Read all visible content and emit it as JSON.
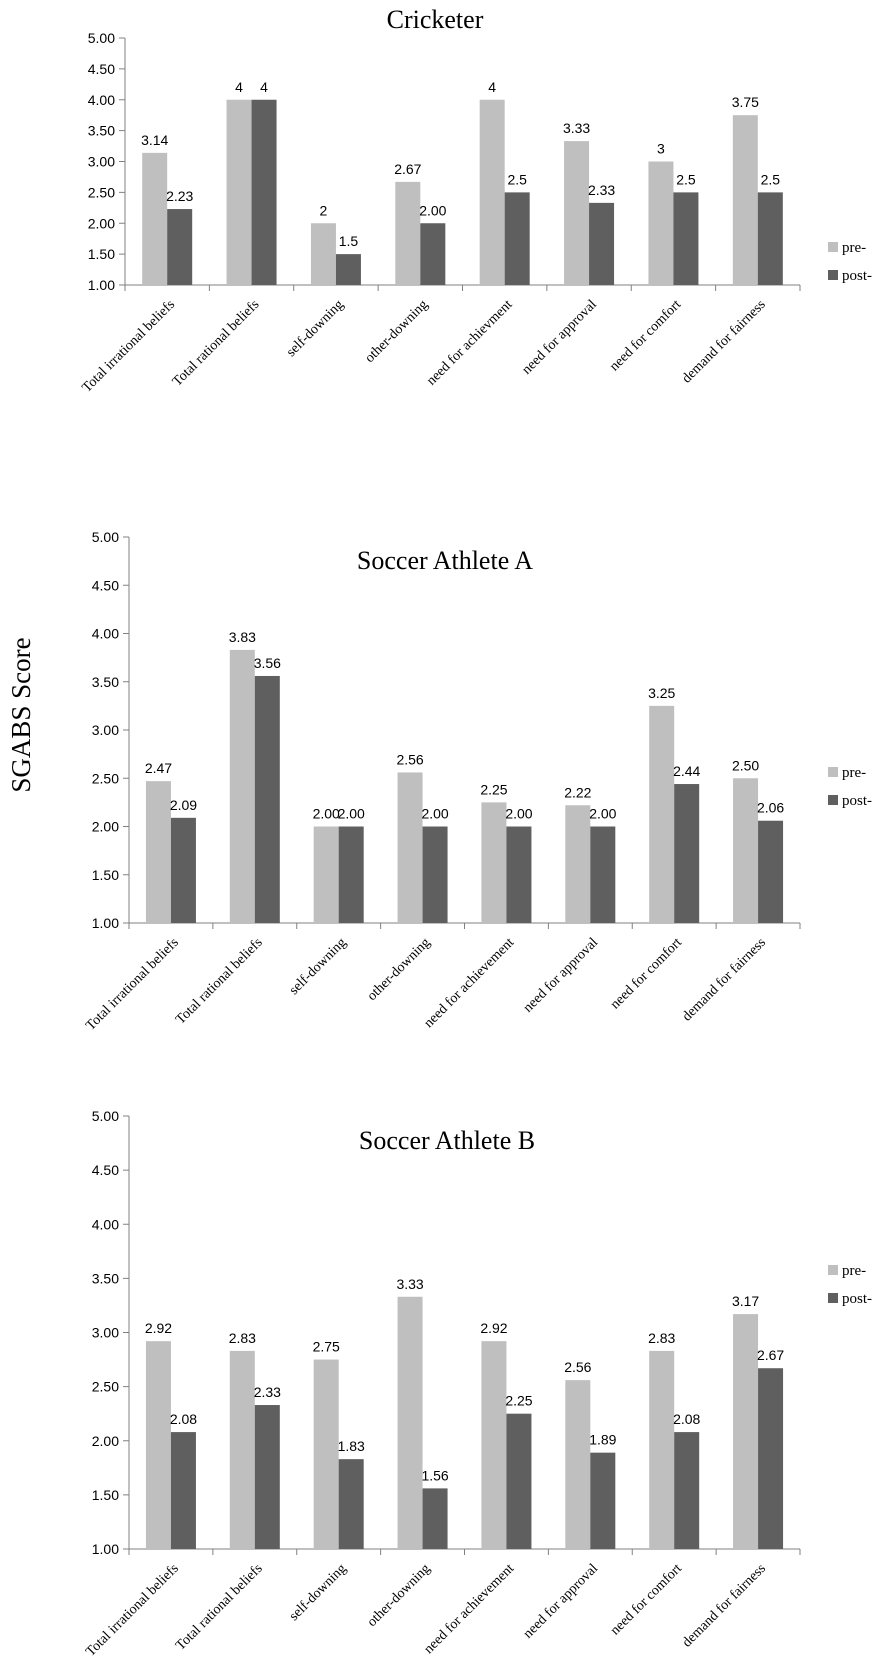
{
  "figure": {
    "ylabel": "SGABS Score"
  },
  "colors": {
    "pre": "#BFBFBF",
    "post": "#5F5F5F",
    "axis": "#808080",
    "text": "#000000"
  },
  "chart_data": [
    {
      "type": "bar",
      "title": "Cricketer",
      "categories": [
        "Total irrational beliefs",
        "Total rational beliefs",
        "self-downing",
        "other-downing",
        "need for achievment",
        "need for approval",
        "need for comfort",
        "demand for fairness"
      ],
      "series": [
        {
          "name": "pre-",
          "values": [
            3.14,
            4,
            2,
            2.67,
            4,
            3.33,
            3,
            3.75
          ],
          "labels": [
            "3.14",
            "4",
            "2",
            "2.67",
            "4",
            "3.33",
            "3",
            "3.75"
          ]
        },
        {
          "name": "post-",
          "values": [
            2.23,
            4,
            1.5,
            2.0,
            2.5,
            2.33,
            2.5,
            2.5
          ],
          "labels": [
            "2.23",
            "4",
            "1.5",
            "2.00",
            "2.5",
            "2.33",
            "2.5",
            "2.5"
          ]
        }
      ],
      "yticks": [
        "1.00",
        "1.50",
        "2.00",
        "2.50",
        "3.00",
        "3.50",
        "4.00",
        "4.50",
        "5.00"
      ],
      "ylim": [
        1,
        5
      ],
      "legend": "right",
      "grid": false
    },
    {
      "type": "bar",
      "title": "Soccer Athlete A",
      "categories": [
        "Total irrational beliefs",
        "Total rational beliefs",
        "self-downing",
        "other-downing",
        "need for achievement",
        "need for approval",
        "need for comfort",
        "demand for fairness"
      ],
      "series": [
        {
          "name": "pre-",
          "values": [
            2.47,
            3.83,
            2.0,
            2.56,
            2.25,
            2.22,
            3.25,
            2.5
          ],
          "labels": [
            "2.47",
            "3.83",
            "2.00",
            "2.56",
            "2.25",
            "2.22",
            "3.25",
            "2.50"
          ]
        },
        {
          "name": "post-",
          "values": [
            2.09,
            3.56,
            2.0,
            2.0,
            2.0,
            2.0,
            2.44,
            2.06
          ],
          "labels": [
            "2.09",
            "3.56",
            "2.00",
            "2.00",
            "2.00",
            "2.00",
            "2.44",
            "2.06"
          ]
        }
      ],
      "yticks": [
        "1.00",
        "1.50",
        "2.00",
        "2.50",
        "3.00",
        "3.50",
        "4.00",
        "4.50",
        "5.00"
      ],
      "ylim": [
        1,
        5
      ],
      "legend": "right",
      "grid": false
    },
    {
      "type": "bar",
      "title": "Soccer Athlete B",
      "categories": [
        "Total irrational beliefs",
        "Total rational beliefs",
        "self-downing",
        "other-downing",
        "need for achievement",
        "need for approval",
        "need for comfort",
        "demand for fairness"
      ],
      "series": [
        {
          "name": "pre-",
          "values": [
            2.92,
            2.83,
            2.75,
            3.33,
            2.92,
            2.56,
            2.83,
            3.17
          ],
          "labels": [
            "2.92",
            "2.83",
            "2.75",
            "3.33",
            "2.92",
            "2.56",
            "2.83",
            "3.17"
          ]
        },
        {
          "name": "post-",
          "values": [
            2.08,
            2.33,
            1.83,
            1.56,
            2.25,
            1.89,
            2.08,
            2.67
          ],
          "labels": [
            "2.08",
            "2.33",
            "1.83",
            "1.56",
            "2.25",
            "1.89",
            "2.08",
            "2.67"
          ]
        }
      ],
      "yticks": [
        "1.00",
        "1.50",
        "2.00",
        "2.50",
        "3.00",
        "3.50",
        "4.00",
        "4.50",
        "5.00"
      ],
      "ylim": [
        1,
        5
      ],
      "legend": "right",
      "grid": false
    }
  ]
}
